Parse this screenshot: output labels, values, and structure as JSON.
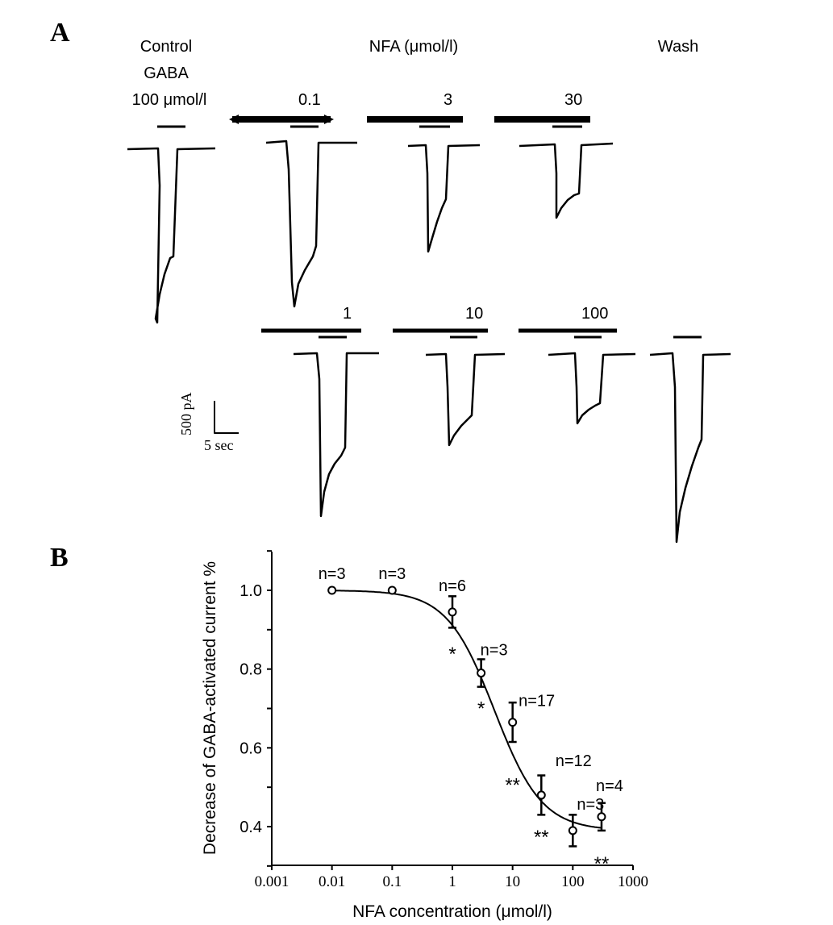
{
  "panel_a": {
    "letter": "A",
    "control_label": "Control",
    "gaba_label": "GABA",
    "gaba_conc_label": "100 μmol/l",
    "nfa_header": "NFA (μmol/l)",
    "wash_label": "Wash",
    "doses": [
      "0.1",
      "3",
      "30",
      "1",
      "10",
      "100"
    ],
    "scale_y_label": "500 pA",
    "scale_x_label": "5 sec"
  },
  "panel_b": {
    "letter": "B"
  },
  "chart_data": {
    "type": "scatter",
    "x": [
      0.01,
      0.1,
      1,
      3,
      10,
      30,
      100,
      300
    ],
    "values": [
      1.0,
      1.0,
      0.945,
      0.79,
      0.665,
      0.48,
      0.39,
      0.425
    ],
    "errors": [
      0.0,
      0.0,
      0.04,
      0.035,
      0.05,
      0.05,
      0.04,
      0.035
    ],
    "n_labels": [
      "n=3",
      "n=3",
      "n=6",
      "n=3",
      "n=17",
      "n=12",
      "n=3",
      "n=4"
    ],
    "significance": [
      "",
      "",
      "*",
      "*",
      "**",
      "**",
      "",
      "**"
    ],
    "fit_curve": {
      "top": 1.0,
      "bottom": 0.39,
      "ic50": 5.0,
      "hill": 1.1
    },
    "xscale": "log",
    "xlim": [
      0.001,
      1000
    ],
    "ylim": [
      0.3,
      1.1
    ],
    "x_ticks": [
      "0.001",
      "0.01",
      "0.1",
      "1",
      "10",
      "100",
      "1000"
    ],
    "y_ticks": [
      "0.4",
      "0.6",
      "0.8",
      "1.0"
    ],
    "xlabel": "NFA concentration (μmol/l)",
    "ylabel": "Decrease of GABA-activated current %",
    "grid": false
  }
}
